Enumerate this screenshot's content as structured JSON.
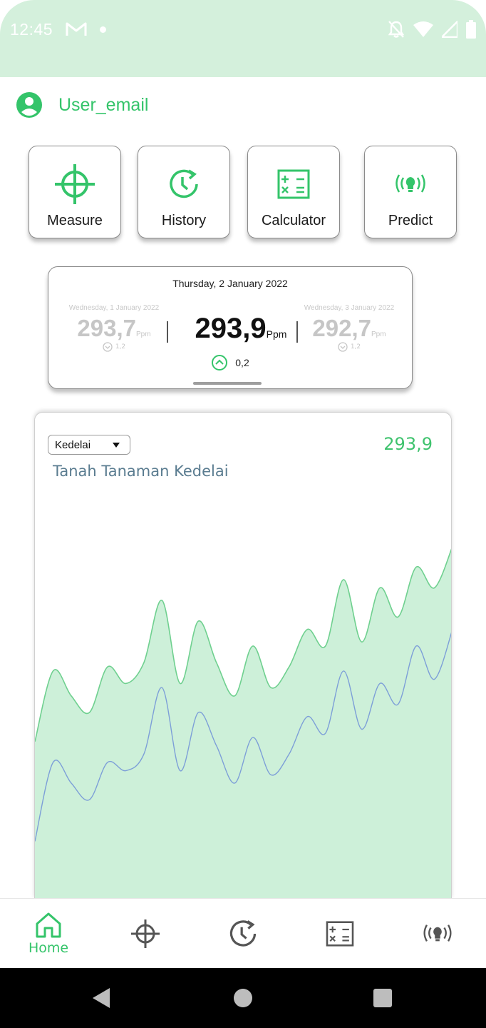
{
  "status_bar": {
    "time": "12:45",
    "icons": [
      "gmail-icon",
      "notification-dot",
      "mute-icon",
      "wifi-icon",
      "signal-icon",
      "battery-icon"
    ]
  },
  "user": {
    "email": "User_email",
    "icon": "account-circle-icon"
  },
  "menu": [
    {
      "label": "Measure",
      "icon": "crosshair-icon"
    },
    {
      "label": "History",
      "icon": "history-clock-icon"
    },
    {
      "label": "Calculator",
      "icon": "calculator-icon"
    },
    {
      "label": "Predict",
      "icon": "broadcast-icon"
    }
  ],
  "reading": {
    "current_date": "Thursday, 2 January 2022",
    "current_value": "293,9",
    "unit": "Ppm",
    "current_change": "0,2",
    "current_change_dir": "up",
    "prev_date": "Wednesday, 1 January 2022",
    "prev_value": "293,7",
    "prev_change": "1,2",
    "next_date": "Wednesday, 3 January 2022",
    "next_value": "292,7",
    "next_change": "1,2"
  },
  "chart": {
    "dropdown_value": "Kedelai",
    "value": "293,9",
    "subtitle": "Tanah Tanaman Kedelai",
    "colors": {
      "fill": "#cdf0d9",
      "green_line": "#6fd08f",
      "blue_line": "#7d9fd8"
    }
  },
  "chart_data": {
    "type": "area",
    "title": "",
    "xlabel": "",
    "ylabel": "",
    "series": [
      {
        "values": [
          38,
          55,
          49,
          45,
          56,
          52,
          57,
          72,
          52,
          67,
          57,
          49,
          61,
          51,
          56,
          65,
          61,
          77,
          62,
          75,
          68,
          80,
          75,
          85
        ]
      },
      {
        "values": [
          14,
          33,
          28,
          24,
          33,
          31,
          35,
          51,
          31,
          45,
          37,
          28,
          39,
          30,
          35,
          44,
          40,
          55,
          41,
          52,
          47,
          61,
          53,
          65
        ]
      }
    ],
    "ylim": [
      0,
      100
    ],
    "grid": false
  },
  "bottom_nav": {
    "items": [
      {
        "label": "Home",
        "icon": "home-icon",
        "active": true
      },
      {
        "label": "",
        "icon": "crosshair-icon",
        "active": false
      },
      {
        "label": "",
        "icon": "history-clock-icon",
        "active": false
      },
      {
        "label": "",
        "icon": "calculator-icon",
        "active": false
      },
      {
        "label": "",
        "icon": "broadcast-icon",
        "active": false
      }
    ]
  },
  "system_nav": {
    "icons": [
      "back-icon",
      "home-circle-icon",
      "recents-square-icon"
    ]
  }
}
